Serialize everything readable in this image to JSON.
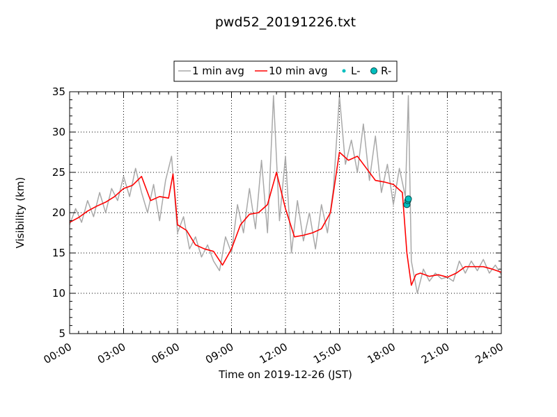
{
  "chart_data": {
    "type": "line",
    "title": "pwd52_20191226.txt",
    "xlabel": "Time on 2019-12-26 (JST)",
    "ylabel": "Visibility (km)",
    "xlim": [
      "00:00",
      "24:00"
    ],
    "ylim": [
      5,
      35
    ],
    "x_ticks": [
      "00:00",
      "03:00",
      "06:00",
      "09:00",
      "12:00",
      "15:00",
      "18:00",
      "21:00",
      "24:00"
    ],
    "y_ticks": [
      "5",
      "10",
      "15",
      "20",
      "25",
      "30",
      "35"
    ],
    "grid": true,
    "legend_position": "top-center, outside",
    "legend": [
      {
        "label": "1 min avg",
        "color": "#a9a9a9",
        "style": "line"
      },
      {
        "label": "10 min avg",
        "color": "#ff0000",
        "style": "line"
      },
      {
        "label": "L-",
        "color": "#00bfbf",
        "style": "small-dot"
      },
      {
        "label": "R-",
        "color": "#00bfbf",
        "style": "circle"
      }
    ],
    "series": [
      {
        "name": "10 min avg",
        "color": "#ff0000",
        "x": [
          "00:00",
          "00:30",
          "01:00",
          "01:30",
          "02:00",
          "02:30",
          "03:00",
          "03:30",
          "04:00",
          "04:30",
          "05:00",
          "05:30",
          "05:45",
          "06:00",
          "06:30",
          "07:00",
          "07:30",
          "08:00",
          "08:30",
          "09:00",
          "09:30",
          "10:00",
          "10:30",
          "11:00",
          "11:30",
          "12:00",
          "12:30",
          "13:00",
          "13:30",
          "14:00",
          "14:30",
          "15:00",
          "15:30",
          "16:00",
          "16:30",
          "17:00",
          "17:30",
          "18:00",
          "18:30",
          "18:45",
          "19:00",
          "19:15",
          "19:30",
          "20:00",
          "20:30",
          "21:00",
          "21:30",
          "22:00",
          "22:30",
          "23:00",
          "23:30",
          "24:00"
        ],
        "y": [
          18.8,
          19.4,
          20.2,
          20.8,
          21.3,
          22.0,
          23.0,
          23.4,
          24.5,
          21.5,
          22.0,
          21.8,
          24.8,
          18.5,
          17.8,
          16.0,
          15.5,
          15.2,
          13.5,
          15.5,
          18.5,
          19.8,
          20.0,
          21.0,
          25.0,
          20.5,
          17.0,
          17.2,
          17.5,
          18.0,
          20.0,
          27.5,
          26.5,
          27.0,
          25.5,
          24.0,
          23.8,
          23.5,
          22.5,
          15.0,
          11.0,
          12.3,
          12.5,
          12.1,
          12.3,
          12.0,
          12.5,
          13.3,
          13.3,
          13.3,
          13.0,
          12.6
        ]
      },
      {
        "name": "1 min avg",
        "color": "#a9a9a9",
        "x": [
          "00:00",
          "00:20",
          "00:40",
          "01:00",
          "01:20",
          "01:40",
          "02:00",
          "02:20",
          "02:40",
          "03:00",
          "03:20",
          "03:40",
          "04:00",
          "04:20",
          "04:40",
          "05:00",
          "05:20",
          "05:40",
          "06:00",
          "06:20",
          "06:40",
          "07:00",
          "07:20",
          "07:40",
          "08:00",
          "08:20",
          "08:40",
          "09:00",
          "09:20",
          "09:40",
          "10:00",
          "10:20",
          "10:40",
          "11:00",
          "11:20",
          "11:40",
          "12:00",
          "12:20",
          "12:40",
          "13:00",
          "13:20",
          "13:40",
          "14:00",
          "14:20",
          "14:40",
          "15:00",
          "15:20",
          "15:40",
          "16:00",
          "16:20",
          "16:40",
          "17:00",
          "17:20",
          "17:40",
          "18:00",
          "18:20",
          "18:40",
          "18:50",
          "19:00",
          "19:20",
          "19:40",
          "20:00",
          "20:20",
          "20:40",
          "21:00",
          "21:20",
          "21:40",
          "22:00",
          "22:20",
          "22:40",
          "23:00",
          "23:20",
          "23:40",
          "24:00"
        ],
        "y": [
          18.5,
          20.5,
          18.8,
          21.5,
          19.5,
          22.5,
          20.0,
          23.0,
          21.5,
          24.5,
          22.0,
          25.5,
          22.5,
          20.0,
          23.5,
          19.0,
          24.0,
          27.0,
          17.5,
          19.5,
          15.5,
          17.0,
          14.5,
          16.0,
          14.0,
          12.8,
          17.0,
          15.0,
          21.0,
          17.5,
          23.0,
          18.0,
          26.5,
          17.5,
          34.5,
          19.0,
          27.0,
          15.0,
          21.5,
          16.5,
          20.0,
          15.5,
          21.0,
          17.5,
          23.0,
          34.5,
          26.0,
          29.0,
          25.0,
          31.0,
          24.0,
          29.5,
          22.5,
          26.0,
          21.0,
          25.5,
          22.0,
          34.5,
          14.0,
          10.0,
          13.0,
          11.5,
          12.5,
          11.8,
          12.0,
          11.5,
          14.0,
          12.5,
          14.0,
          12.8,
          14.2,
          12.5,
          13.5,
          12.3
        ]
      },
      {
        "name": "R-",
        "color": "#00bfbf",
        "x": [
          "18:45",
          "18:48",
          "18:50"
        ],
        "y": [
          21.0,
          21.5,
          21.7
        ]
      }
    ]
  }
}
